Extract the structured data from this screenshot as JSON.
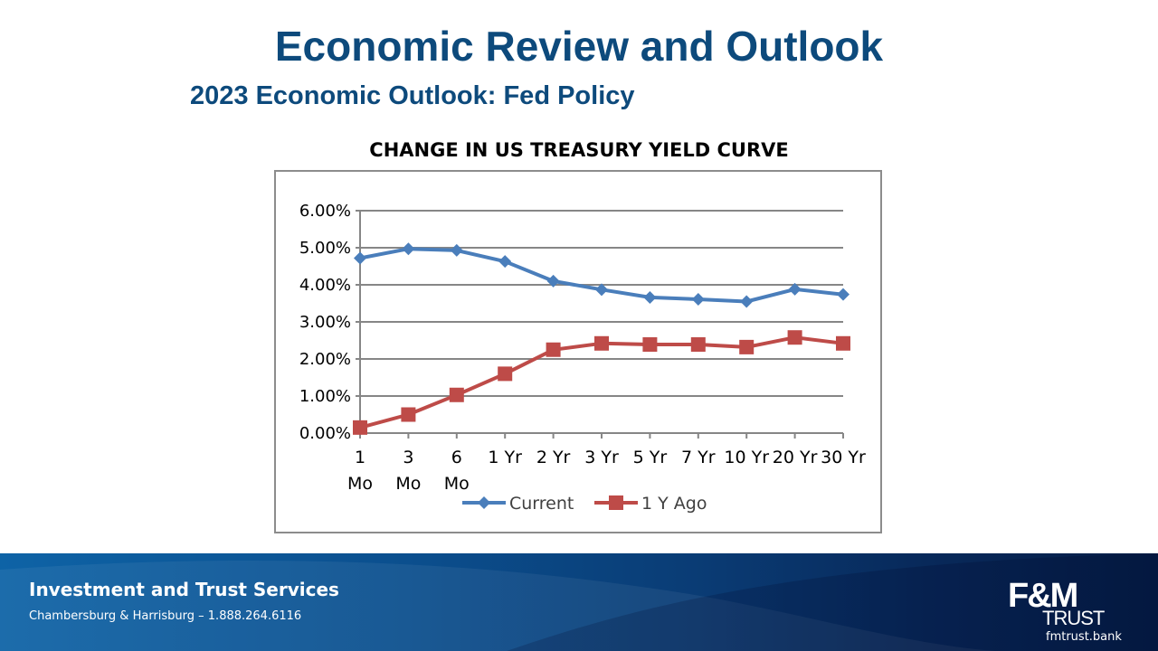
{
  "slide": {
    "title": "Economic Review and Outlook",
    "subtitle": "2023 Economic Outlook: Fed Policy"
  },
  "chart_data": {
    "type": "line",
    "title": "CHANGE IN US TREASURY YIELD CURVE",
    "categories": [
      [
        "1",
        "Mo"
      ],
      [
        "3",
        "Mo"
      ],
      [
        "6",
        "Mo"
      ],
      [
        "1 Yr"
      ],
      [
        "2 Yr"
      ],
      [
        "3 Yr"
      ],
      [
        "5 Yr"
      ],
      [
        "7 Yr"
      ],
      [
        "10 Yr"
      ],
      [
        "20 Yr"
      ],
      [
        "30 Yr"
      ]
    ],
    "series": [
      {
        "name": "Current",
        "color": "#4a7ebb",
        "marker": "diamond",
        "values": [
          4.72,
          4.97,
          4.93,
          4.63,
          4.1,
          3.87,
          3.66,
          3.61,
          3.55,
          3.88,
          3.74
        ]
      },
      {
        "name": "1 Y Ago",
        "color": "#be4b48",
        "marker": "square",
        "values": [
          0.15,
          0.5,
          1.03,
          1.6,
          2.25,
          2.42,
          2.39,
          2.39,
          2.32,
          2.58,
          2.42
        ]
      }
    ],
    "yticks": [
      "0.00%",
      "1.00%",
      "2.00%",
      "3.00%",
      "4.00%",
      "5.00%",
      "6.00%"
    ],
    "ylim": [
      0,
      6
    ],
    "grid": true,
    "legend": "bottom",
    "xlabel": "",
    "ylabel": ""
  },
  "footer": {
    "title": "Investment and Trust Services",
    "contact": "Chambersburg & Harrisburg – 1.888.264.6116"
  },
  "logo": {
    "mark": "F&M",
    "word": "TRUST",
    "url": "fmtrust.bank"
  }
}
